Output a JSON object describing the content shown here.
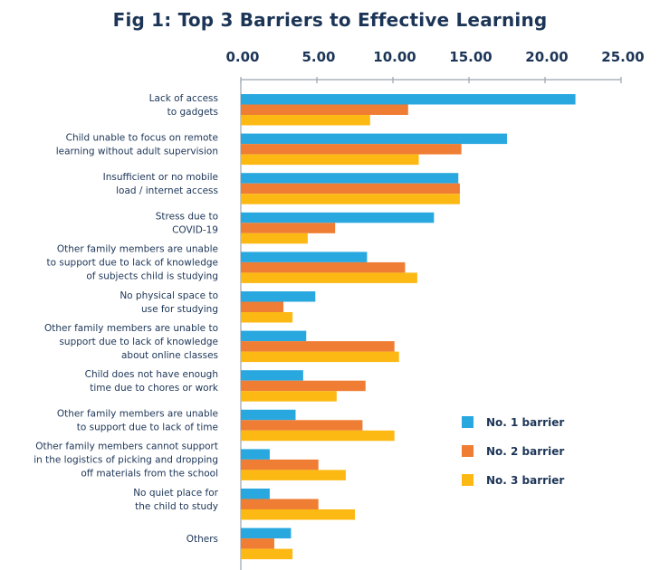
{
  "chart_data": {
    "type": "bar",
    "orientation": "horizontal",
    "title": "Fig 1: Top 3 Barriers to Effective Learning",
    "xlim": [
      0,
      25
    ],
    "x_ticks": [
      "0.00",
      "5.00",
      "10.00",
      "15.00",
      "20.00",
      "25.00"
    ],
    "x_tick_values": [
      0,
      5,
      10,
      15,
      20,
      25
    ],
    "legend_position": "right",
    "categories": [
      [
        "Lack of access",
        "to gadgets"
      ],
      [
        "Child unable to focus on remote",
        "learning without adult supervision"
      ],
      [
        "Insufficient or no mobile",
        "load / internet access"
      ],
      [
        "Stress due to",
        "COVID-19"
      ],
      [
        "Other family members are unable",
        "to support due to lack of knowledge",
        "of subjects child is studying"
      ],
      [
        "No physical space to",
        "use for studying"
      ],
      [
        "Other family members are unable to",
        "support due to lack of knowledge",
        "about online classes"
      ],
      [
        "Child does not have enough",
        "time due to chores or work"
      ],
      [
        "Other family members are unable",
        "to support due to lack of time"
      ],
      [
        "Other family members cannot support",
        "in the logistics of picking and dropping",
        "off materials from the school"
      ],
      [
        "No quiet place for",
        "the child to study"
      ],
      [
        "Others"
      ]
    ],
    "series": [
      {
        "name": "No. 1 barrier",
        "color": "#29a8e0",
        "values": [
          22.0,
          17.5,
          14.3,
          12.7,
          8.3,
          4.9,
          4.3,
          4.1,
          3.6,
          1.9,
          1.9,
          3.3
        ]
      },
      {
        "name": "No. 2 barrier",
        "color": "#ef7d33",
        "values": [
          11.0,
          14.5,
          14.4,
          6.2,
          10.8,
          2.8,
          10.1,
          8.2,
          8.0,
          5.1,
          5.1,
          2.2
        ]
      },
      {
        "name": "No. 3 barrier",
        "color": "#fdb913",
        "values": [
          8.5,
          11.7,
          14.4,
          4.4,
          11.6,
          3.4,
          10.4,
          6.3,
          10.1,
          6.9,
          7.5,
          3.4
        ]
      }
    ]
  }
}
